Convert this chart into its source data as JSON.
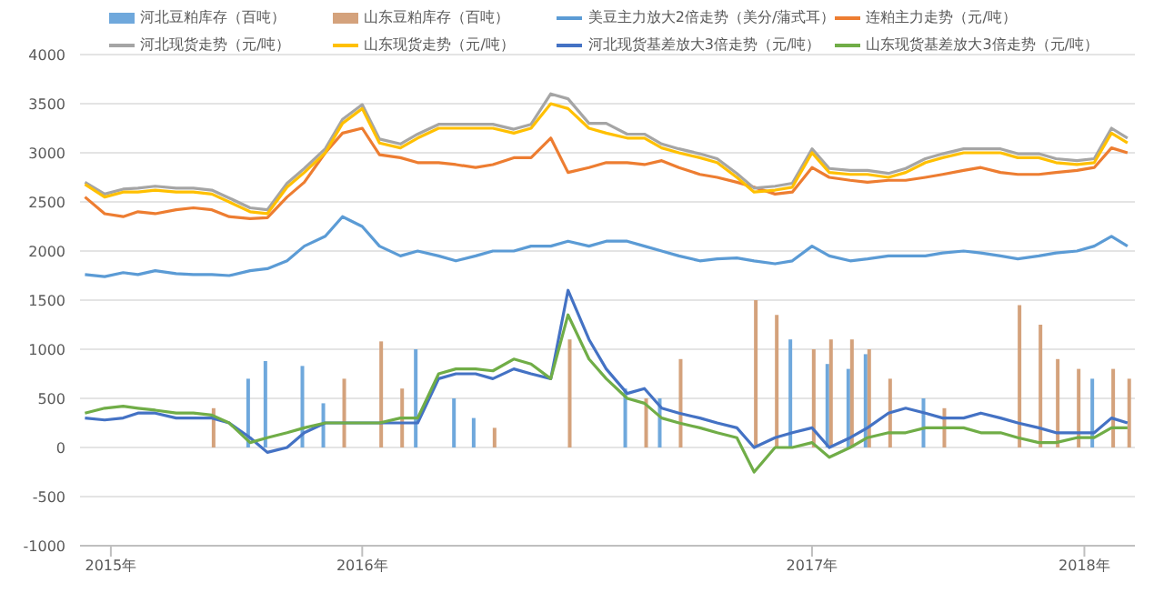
{
  "chart_data": {
    "type": "line",
    "x": [
      "2015-11-19",
      "2015-12-05",
      "2015-12-20",
      "2016-01-01",
      "2016-01-15",
      "2016-02-01",
      "2016-02-15",
      "2016-03-01",
      "2016-03-15",
      "2016-04-01",
      "2016-04-15",
      "2016-05-01",
      "2016-05-15",
      "2016-06-01",
      "2016-06-15",
      "2016-07-01",
      "2016-07-15",
      "2016-08-01",
      "2016-08-15",
      "2016-09-01",
      "2016-09-15",
      "2016-10-01",
      "2016-10-15",
      "2016-11-01",
      "2016-11-15",
      "2016-12-01",
      "2016-12-15",
      "2017-01-01",
      "2017-01-15",
      "2017-02-01",
      "2017-02-15",
      "2017-03-01",
      "2017-03-15",
      "2017-04-01",
      "2017-04-15",
      "2017-05-01",
      "2017-05-15",
      "2017-06-01",
      "2017-06-15",
      "2017-07-01",
      "2017-07-15",
      "2017-08-01",
      "2017-08-15",
      "2017-09-01",
      "2017-09-15",
      "2017-10-01",
      "2017-10-15",
      "2017-11-01",
      "2017-11-15",
      "2017-12-01",
      "2017-12-15",
      "2018-01-01",
      "2018-01-15",
      "2018-02-01",
      "2018-02-15",
      "2018-03-01",
      "2018-03-14"
    ],
    "series": [
      {
        "name": "河北豆粕库存（百吨）",
        "type": "bar",
        "color": "#6fa8dc",
        "values": [
          null,
          null,
          null,
          null,
          null,
          null,
          null,
          null,
          null,
          700,
          880,
          null,
          830,
          450,
          null,
          null,
          null,
          null,
          1000,
          null,
          500,
          300,
          null,
          null,
          null,
          null,
          null,
          null,
          null,
          600,
          null,
          500,
          null,
          null,
          null,
          null,
          null,
          null,
          1100,
          null,
          850,
          800,
          950,
          null,
          null,
          500,
          null,
          null,
          null,
          null,
          null,
          null,
          null,
          null,
          700,
          null,
          null
        ]
      },
      {
        "name": "山东豆粕库存（百吨）",
        "type": "bar",
        "color": "#d4a27c",
        "values": [
          null,
          null,
          null,
          null,
          null,
          null,
          null,
          400,
          null,
          null,
          null,
          null,
          null,
          null,
          700,
          null,
          1080,
          600,
          null,
          null,
          null,
          null,
          200,
          null,
          null,
          null,
          1100,
          null,
          null,
          null,
          500,
          null,
          900,
          null,
          null,
          null,
          1500,
          1350,
          null,
          1000,
          1100,
          1100,
          1000,
          700,
          null,
          null,
          400,
          null,
          null,
          null,
          1450,
          1250,
          900,
          800,
          null,
          800,
          700
        ]
      },
      {
        "name": "美豆主力放大2倍走势（美分/蒲式耳）",
        "color": "#5b9bd5",
        "values": [
          1760,
          1740,
          1780,
          1760,
          1800,
          1770,
          1760,
          1760,
          1750,
          1800,
          1820,
          1900,
          2050,
          2150,
          2350,
          2250,
          2050,
          1950,
          2000,
          1950,
          1900,
          1950,
          2000,
          2000,
          2050,
          2050,
          2100,
          2050,
          2100,
          2100,
          2050,
          2000,
          1950,
          1900,
          1920,
          1930,
          1900,
          1870,
          1900,
          2050,
          1950,
          1900,
          1920,
          1950,
          1950,
          1950,
          1980,
          2000,
          1980,
          1950,
          1920,
          1950,
          1980,
          2000,
          2050,
          2150,
          2050
        ]
      },
      {
        "name": "连粕主力走势（元/吨）",
        "color": "#ed7d31",
        "values": [
          2550,
          2380,
          2350,
          2400,
          2380,
          2420,
          2440,
          2420,
          2350,
          2330,
          2340,
          2550,
          2700,
          3000,
          3200,
          3250,
          2980,
          2950,
          2900,
          2900,
          2880,
          2850,
          2880,
          2950,
          2950,
          3150,
          2800,
          2850,
          2900,
          2900,
          2880,
          2920,
          2850,
          2780,
          2750,
          2700,
          2650,
          2580,
          2600,
          2850,
          2750,
          2720,
          2700,
          2720,
          2720,
          2750,
          2780,
          2820,
          2850,
          2800,
          2780,
          2780,
          2800,
          2820,
          2850,
          3050,
          3000
        ]
      },
      {
        "name": "河北现货走势（元/吨）",
        "color": "#a5a5a5",
        "values": [
          2700,
          2580,
          2630,
          2640,
          2660,
          2640,
          2640,
          2620,
          2540,
          2440,
          2420,
          2690,
          2840,
          3040,
          3340,
          3490,
          3140,
          3090,
          3190,
          3290,
          3290,
          3290,
          3290,
          3240,
          3290,
          3600,
          3550,
          3300,
          3300,
          3190,
          3190,
          3090,
          3040,
          2990,
          2940,
          2790,
          2640,
          2660,
          2690,
          3040,
          2840,
          2820,
          2820,
          2790,
          2840,
          2940,
          2990,
          3040,
          3040,
          3040,
          2990,
          2990,
          2940,
          2920,
          2940,
          3250,
          3150
        ]
      },
      {
        "name": "山东现货走势（元/吨）",
        "color": "#ffc000",
        "values": [
          2680,
          2550,
          2600,
          2600,
          2620,
          2600,
          2600,
          2580,
          2500,
          2400,
          2380,
          2650,
          2800,
          3000,
          3300,
          3450,
          3100,
          3050,
          3150,
          3250,
          3250,
          3250,
          3250,
          3200,
          3250,
          3500,
          3450,
          3250,
          3200,
          3150,
          3150,
          3050,
          3000,
          2950,
          2900,
          2750,
          2600,
          2620,
          2650,
          3000,
          2800,
          2780,
          2780,
          2750,
          2800,
          2900,
          2950,
          3000,
          3000,
          3000,
          2950,
          2950,
          2900,
          2880,
          2900,
          3200,
          3100
        ]
      },
      {
        "name": "河北现货基差放大3倍走势（元/吨）",
        "color": "#4472c4",
        "values": [
          300,
          280,
          300,
          350,
          350,
          300,
          300,
          300,
          250,
          100,
          -50,
          0,
          150,
          250,
          250,
          250,
          250,
          250,
          250,
          700,
          750,
          750,
          700,
          800,
          750,
          700,
          1600,
          1100,
          800,
          550,
          600,
          400,
          350,
          300,
          250,
          200,
          0,
          100,
          150,
          200,
          0,
          100,
          200,
          350,
          400,
          350,
          300,
          300,
          350,
          300,
          250,
          200,
          150,
          150,
          150,
          300,
          250
        ]
      },
      {
        "name": "山东现货基差放大3倍走势（元/吨）",
        "color": "#70ad47",
        "values": [
          350,
          400,
          420,
          400,
          380,
          350,
          350,
          330,
          250,
          50,
          100,
          150,
          200,
          250,
          250,
          250,
          250,
          300,
          300,
          750,
          800,
          800,
          780,
          900,
          850,
          700,
          1350,
          900,
          700,
          500,
          450,
          300,
          250,
          200,
          150,
          100,
          -250,
          0,
          0,
          50,
          -100,
          0,
          100,
          150,
          150,
          200,
          200,
          200,
          150,
          150,
          100,
          50,
          50,
          100,
          100,
          200,
          200
        ]
      }
    ],
    "xlim": [
      "2015-11-15",
      "2018-03-20"
    ],
    "xticks": [
      {
        "value": "2015-12-10",
        "label": "2015年"
      },
      {
        "value": "2016-07-01",
        "label": "2016年"
      },
      {
        "value": "2017-07-01",
        "label": "2017年"
      },
      {
        "value": "2018-02-07",
        "label": "2018年"
      }
    ],
    "ylim": [
      -1000,
      4000
    ],
    "yticks": [
      -1000,
      -500,
      0,
      500,
      1000,
      1500,
      2000,
      2500,
      3000,
      3500,
      4000
    ],
    "grid": "y",
    "legend": "top",
    "marker": "none",
    "line_style": "solid"
  }
}
